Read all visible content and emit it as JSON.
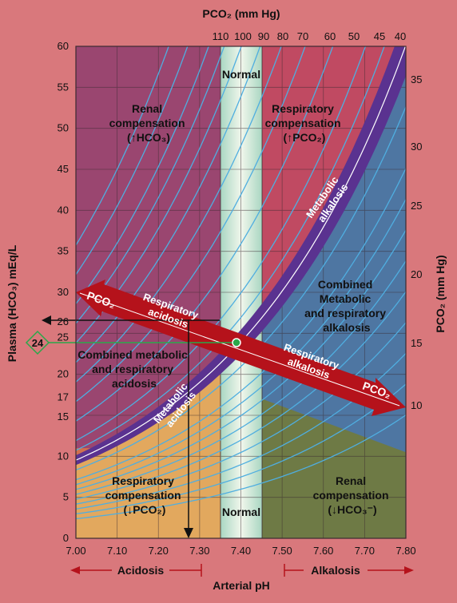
{
  "top_axis_label": "PCO₂ (mm Hg)",
  "top_ticks": [
    "110",
    "100",
    "90",
    "80",
    "70",
    "60",
    "50",
    "45",
    "40"
  ],
  "left_axis_label": "Plasma (HCO₃) mEq/L",
  "left_ticks": [
    "0",
    "5",
    "10",
    "15",
    "17",
    "20",
    "25",
    "26",
    "30",
    "35",
    "40",
    "45",
    "50",
    "55",
    "60"
  ],
  "left_marker_value": "24",
  "right_axis_label": "PCO₂ (mm Hg)",
  "right_ticks": [
    "10",
    "15",
    "20",
    "25",
    "30",
    "35"
  ],
  "bottom_ticks": [
    "7.00",
    "7.10",
    "7.20",
    "7.30",
    "7.40",
    "7.50",
    "7.60",
    "7.70",
    "7.80"
  ],
  "bottom_axis_label": "Arterial pH",
  "acidosis_label": "Acidosis",
  "alkalosis_label": "Alkalosis",
  "normal_top": "Normal",
  "normal_bottom": "Normal",
  "regions": {
    "renal_comp_top": [
      "Renal",
      "compensation",
      "(↑HCO₃)"
    ],
    "resp_comp_top": [
      "Respiratory",
      "compensation",
      "(↑PCO₂)"
    ],
    "combined_alk": [
      "Combined",
      "Metabolic",
      "and respiratory",
      "alkalosis"
    ],
    "combined_acid": [
      "Combined metabolic",
      "and respiratory",
      "acidosis"
    ],
    "resp_comp_bottom": [
      "Respiratory",
      "compensation",
      "(↓PCO₂)"
    ],
    "renal_comp_bottom": [
      "Renal",
      "compensation",
      "(↓HCO₃⁻)"
    ]
  },
  "band_labels": {
    "metabolic_alkalosis": [
      "Metabolic",
      "alkalosis"
    ],
    "metabolic_acidosis": [
      "Metabolic",
      "acidosis"
    ]
  },
  "arrow_labels": {
    "pco2_left": "PCO₂",
    "resp_acidosis": [
      "Respiratory",
      "acidosis"
    ],
    "resp_alkalosis": [
      "Respiratory",
      "alkalosis"
    ],
    "pco2_right": "PCO₂"
  },
  "colors": {
    "background": "#d9787c",
    "renal_top": "#9a4670",
    "resp_top": "#c04a62",
    "combined_alk": "#4e76a2",
    "combined_acid": "#d0704e",
    "resp_bottom": "#e2a85e",
    "renal_bottom": "#6e7a45",
    "normal_band": "#d8ecd8",
    "metabolic_band": "#5a3290",
    "red_arrow": "#b5121b",
    "isobar": "#4faee0",
    "normal_point": "#2aa84a"
  }
}
